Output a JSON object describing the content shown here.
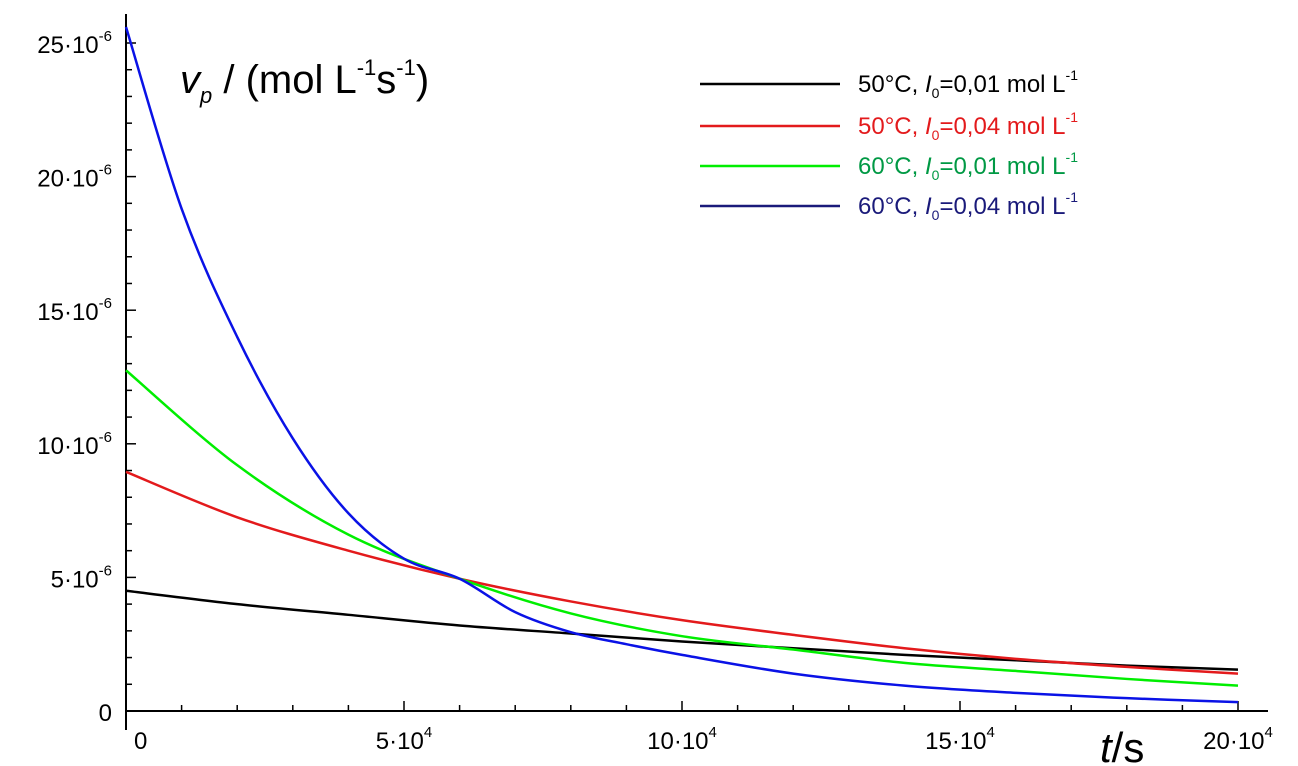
{
  "chart_data": {
    "type": "line",
    "title": "",
    "ylabel": {
      "main": "v",
      "sub": "p",
      "rest": " / (mol L",
      "sup1": "-1",
      "mid": "s",
      "sup2": "-1",
      "close": ")"
    },
    "xlabel": {
      "main": "t",
      "rest": "/s"
    },
    "xlim": [
      0,
      200000
    ],
    "ylim": [
      0,
      2.6e-05
    ],
    "grid": false,
    "legend_position": "top-right",
    "x_ticks": [
      {
        "value": 0,
        "mant": "0",
        "exp": ""
      },
      {
        "value": 50000,
        "mant": "5·10",
        "exp": "4"
      },
      {
        "value": 100000,
        "mant": "10·10",
        "exp": "4"
      },
      {
        "value": 150000,
        "mant": "15·10",
        "exp": "4"
      },
      {
        "value": 200000,
        "mant": "20·10",
        "exp": "4"
      }
    ],
    "y_ticks": [
      {
        "value": 0,
        "mant": "0",
        "exp": ""
      },
      {
        "value": 5e-06,
        "mant": "5·10",
        "exp": "-6"
      },
      {
        "value": 1e-05,
        "mant": "10·10",
        "exp": "-6"
      },
      {
        "value": 1.5e-05,
        "mant": "15·10",
        "exp": "-6"
      },
      {
        "value": 2e-05,
        "mant": "20·10",
        "exp": "-6"
      },
      {
        "value": 2.5e-05,
        "mant": "25·10",
        "exp": "-6"
      }
    ],
    "series": [
      {
        "name": "50°C, I0=0,01 mol L-1",
        "label_parts": {
          "pre": "50°C, ",
          "var": "I",
          "sub": "0",
          "post": "=0,01 mol L",
          "sup": "-1"
        },
        "color": "#000000",
        "text_color": "#000000",
        "x": [
          0,
          20000,
          40000,
          60000,
          80000,
          100000,
          120000,
          140000,
          160000,
          180000,
          200000
        ],
        "y": [
          4.5e-06,
          4e-06,
          3.6e-06,
          3.2e-06,
          2.9e-06,
          2.6e-06,
          2.35e-06,
          2.1e-06,
          1.9e-06,
          1.7e-06,
          1.55e-06
        ]
      },
      {
        "name": "50°C, I0=0,04 mol L-1",
        "label_parts": {
          "pre": "50°C, ",
          "var": "I",
          "sub": "0",
          "post": "=0,04 mol L",
          "sup": "-1"
        },
        "color": "#e31a1c",
        "text_color": "#e31a1c",
        "x": [
          0,
          20000,
          40000,
          60000,
          80000,
          100000,
          120000,
          140000,
          160000,
          180000,
          200000
        ],
        "y": [
          8.95e-06,
          7.25e-06,
          6e-06,
          4.95e-06,
          4.1e-06,
          3.4e-06,
          2.85e-06,
          2.35e-06,
          1.95e-06,
          1.65e-06,
          1.4e-06
        ]
      },
      {
        "name": "60°C, I0=0,01 mol L-1",
        "label_parts": {
          "pre": "60°C, ",
          "var": "I",
          "sub": "0",
          "post": "=0,01 mol L",
          "sup": "-1"
        },
        "color": "#00ee00",
        "text_color": "#009944",
        "x": [
          0,
          20000,
          40000,
          60000,
          80000,
          100000,
          120000,
          140000,
          160000,
          180000,
          200000
        ],
        "y": [
          1.275e-05,
          9.2e-06,
          6.6e-06,
          4.95e-06,
          3.65e-06,
          2.8e-06,
          2.3e-06,
          1.8e-06,
          1.5e-06,
          1.2e-06,
          9.5e-07
        ]
      },
      {
        "name": "60°C, I0=0,04 mol L-1",
        "label_parts": {
          "pre": "60°C, ",
          "var": "I",
          "sub": "0",
          "post": "=0,04 mol L",
          "sup": "-1"
        },
        "color": "#0a12e6",
        "text_color": "#1a1a7a",
        "x": [
          0,
          10000,
          20000,
          30000,
          40000,
          50000,
          60000,
          70000,
          80000,
          90000,
          100000,
          120000,
          140000,
          160000,
          180000,
          200000
        ],
        "y": [
          2.56e-05,
          1.88e-05,
          1.4e-05,
          1.02e-05,
          7.4e-06,
          5.7e-06,
          4.95e-06,
          3.7e-06,
          2.95e-06,
          2.5e-06,
          2.1e-06,
          1.4e-06,
          9.5e-07,
          6.8e-07,
          4.8e-07,
          3.3e-07
        ]
      }
    ]
  }
}
